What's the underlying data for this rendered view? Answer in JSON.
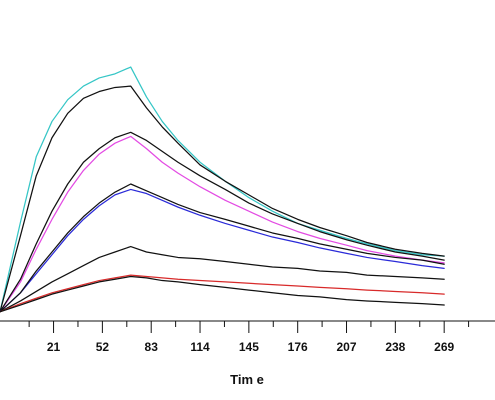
{
  "chart_data": {
    "type": "line",
    "title": "",
    "xlabel": "Tim e",
    "ylabel": "",
    "xlim": [
      -13,
      300
    ],
    "ylim": [
      0,
      1
    ],
    "x_ticks": [
      21,
      52,
      83,
      114,
      145,
      176,
      207,
      238,
      269
    ],
    "grid": false,
    "series": [
      {
        "color": "#35c6c6",
        "points": [
          [
            -13,
            0.03
          ],
          [
            0,
            0.36
          ],
          [
            10,
            0.6
          ],
          [
            20,
            0.73
          ],
          [
            30,
            0.81
          ],
          [
            40,
            0.86
          ],
          [
            50,
            0.89
          ],
          [
            60,
            0.905
          ],
          [
            70,
            0.93
          ],
          [
            80,
            0.82
          ],
          [
            90,
            0.73
          ],
          [
            100,
            0.66
          ],
          [
            114,
            0.58
          ],
          [
            130,
            0.51
          ],
          [
            145,
            0.45
          ],
          [
            160,
            0.4
          ],
          [
            176,
            0.355
          ],
          [
            190,
            0.33
          ],
          [
            207,
            0.3
          ],
          [
            220,
            0.28
          ],
          [
            238,
            0.255
          ],
          [
            255,
            0.24
          ],
          [
            269,
            0.235
          ]
        ]
      },
      {
        "color": "#111111",
        "points": [
          [
            -13,
            0.03
          ],
          [
            0,
            0.31
          ],
          [
            10,
            0.53
          ],
          [
            20,
            0.67
          ],
          [
            30,
            0.76
          ],
          [
            40,
            0.815
          ],
          [
            50,
            0.84
          ],
          [
            60,
            0.855
          ],
          [
            70,
            0.86
          ],
          [
            80,
            0.78
          ],
          [
            90,
            0.71
          ],
          [
            100,
            0.65
          ],
          [
            114,
            0.57
          ],
          [
            130,
            0.51
          ],
          [
            145,
            0.46
          ],
          [
            160,
            0.41
          ],
          [
            176,
            0.37
          ],
          [
            190,
            0.34
          ],
          [
            207,
            0.31
          ],
          [
            220,
            0.285
          ],
          [
            238,
            0.26
          ],
          [
            255,
            0.245
          ],
          [
            269,
            0.235
          ]
        ]
      },
      {
        "color": "#e34be3",
        "points": [
          [
            -13,
            0.03
          ],
          [
            0,
            0.14
          ],
          [
            10,
            0.26
          ],
          [
            20,
            0.37
          ],
          [
            30,
            0.47
          ],
          [
            40,
            0.55
          ],
          [
            50,
            0.61
          ],
          [
            60,
            0.65
          ],
          [
            70,
            0.675
          ],
          [
            80,
            0.63
          ],
          [
            90,
            0.58
          ],
          [
            100,
            0.54
          ],
          [
            114,
            0.49
          ],
          [
            130,
            0.44
          ],
          [
            145,
            0.4
          ],
          [
            160,
            0.36
          ],
          [
            176,
            0.325
          ],
          [
            190,
            0.3
          ],
          [
            207,
            0.275
          ],
          [
            220,
            0.255
          ],
          [
            238,
            0.235
          ],
          [
            255,
            0.22
          ],
          [
            269,
            0.21
          ]
        ]
      },
      {
        "color": "#111111",
        "points": [
          [
            -13,
            0.03
          ],
          [
            0,
            0.15
          ],
          [
            10,
            0.28
          ],
          [
            20,
            0.4
          ],
          [
            30,
            0.5
          ],
          [
            40,
            0.58
          ],
          [
            50,
            0.63
          ],
          [
            60,
            0.67
          ],
          [
            70,
            0.69
          ],
          [
            80,
            0.66
          ],
          [
            90,
            0.62
          ],
          [
            100,
            0.58
          ],
          [
            114,
            0.53
          ],
          [
            130,
            0.48
          ],
          [
            145,
            0.43
          ],
          [
            160,
            0.39
          ],
          [
            176,
            0.355
          ],
          [
            190,
            0.325
          ],
          [
            207,
            0.295
          ],
          [
            220,
            0.275
          ],
          [
            238,
            0.25
          ],
          [
            255,
            0.235
          ],
          [
            269,
            0.22
          ]
        ]
      },
      {
        "color": "#2a2ad8",
        "points": [
          [
            -13,
            0.03
          ],
          [
            0,
            0.1
          ],
          [
            10,
            0.17
          ],
          [
            20,
            0.24
          ],
          [
            30,
            0.31
          ],
          [
            40,
            0.37
          ],
          [
            50,
            0.42
          ],
          [
            60,
            0.46
          ],
          [
            70,
            0.48
          ],
          [
            80,
            0.465
          ],
          [
            90,
            0.44
          ],
          [
            100,
            0.415
          ],
          [
            114,
            0.385
          ],
          [
            130,
            0.355
          ],
          [
            145,
            0.33
          ],
          [
            160,
            0.305
          ],
          [
            176,
            0.285
          ],
          [
            190,
            0.265
          ],
          [
            207,
            0.245
          ],
          [
            220,
            0.23
          ],
          [
            238,
            0.215
          ],
          [
            255,
            0.2
          ],
          [
            269,
            0.19
          ]
        ]
      },
      {
        "color": "#111111",
        "points": [
          [
            -13,
            0.03
          ],
          [
            0,
            0.1
          ],
          [
            10,
            0.18
          ],
          [
            20,
            0.25
          ],
          [
            30,
            0.32
          ],
          [
            40,
            0.38
          ],
          [
            50,
            0.43
          ],
          [
            60,
            0.47
          ],
          [
            70,
            0.5
          ],
          [
            80,
            0.475
          ],
          [
            90,
            0.45
          ],
          [
            100,
            0.425
          ],
          [
            114,
            0.395
          ],
          [
            130,
            0.37
          ],
          [
            145,
            0.345
          ],
          [
            160,
            0.32
          ],
          [
            176,
            0.3
          ],
          [
            190,
            0.28
          ],
          [
            207,
            0.26
          ],
          [
            220,
            0.245
          ],
          [
            238,
            0.23
          ],
          [
            255,
            0.22
          ],
          [
            269,
            0.205
          ]
        ]
      },
      {
        "color": "#111111",
        "points": [
          [
            -13,
            0.03
          ],
          [
            0,
            0.07
          ],
          [
            10,
            0.105
          ],
          [
            20,
            0.14
          ],
          [
            30,
            0.17
          ],
          [
            40,
            0.2
          ],
          [
            50,
            0.23
          ],
          [
            60,
            0.25
          ],
          [
            70,
            0.27
          ],
          [
            80,
            0.25
          ],
          [
            90,
            0.24
          ],
          [
            100,
            0.23
          ],
          [
            114,
            0.225
          ],
          [
            130,
            0.215
          ],
          [
            145,
            0.205
          ],
          [
            160,
            0.195
          ],
          [
            176,
            0.19
          ],
          [
            190,
            0.18
          ],
          [
            207,
            0.175
          ],
          [
            220,
            0.165
          ],
          [
            238,
            0.16
          ],
          [
            255,
            0.155
          ],
          [
            269,
            0.15
          ]
        ]
      },
      {
        "color": "#d82a2a",
        "points": [
          [
            -13,
            0.03
          ],
          [
            0,
            0.06
          ],
          [
            10,
            0.08
          ],
          [
            20,
            0.1
          ],
          [
            30,
            0.115
          ],
          [
            40,
            0.13
          ],
          [
            50,
            0.145
          ],
          [
            60,
            0.155
          ],
          [
            70,
            0.165
          ],
          [
            80,
            0.16
          ],
          [
            90,
            0.155
          ],
          [
            100,
            0.15
          ],
          [
            114,
            0.145
          ],
          [
            130,
            0.14
          ],
          [
            145,
            0.135
          ],
          [
            160,
            0.13
          ],
          [
            176,
            0.125
          ],
          [
            190,
            0.12
          ],
          [
            207,
            0.115
          ],
          [
            220,
            0.11
          ],
          [
            238,
            0.105
          ],
          [
            255,
            0.1
          ],
          [
            269,
            0.095
          ]
        ]
      },
      {
        "color": "#111111",
        "points": [
          [
            -13,
            0.03
          ],
          [
            0,
            0.055
          ],
          [
            10,
            0.075
          ],
          [
            20,
            0.095
          ],
          [
            30,
            0.11
          ],
          [
            40,
            0.125
          ],
          [
            50,
            0.14
          ],
          [
            60,
            0.15
          ],
          [
            70,
            0.16
          ],
          [
            80,
            0.155
          ],
          [
            90,
            0.145
          ],
          [
            100,
            0.14
          ],
          [
            114,
            0.13
          ],
          [
            130,
            0.12
          ],
          [
            145,
            0.11
          ],
          [
            160,
            0.1
          ],
          [
            176,
            0.09
          ],
          [
            190,
            0.085
          ],
          [
            207,
            0.075
          ],
          [
            220,
            0.07
          ],
          [
            238,
            0.065
          ],
          [
            255,
            0.06
          ],
          [
            269,
            0.055
          ]
        ]
      }
    ]
  }
}
